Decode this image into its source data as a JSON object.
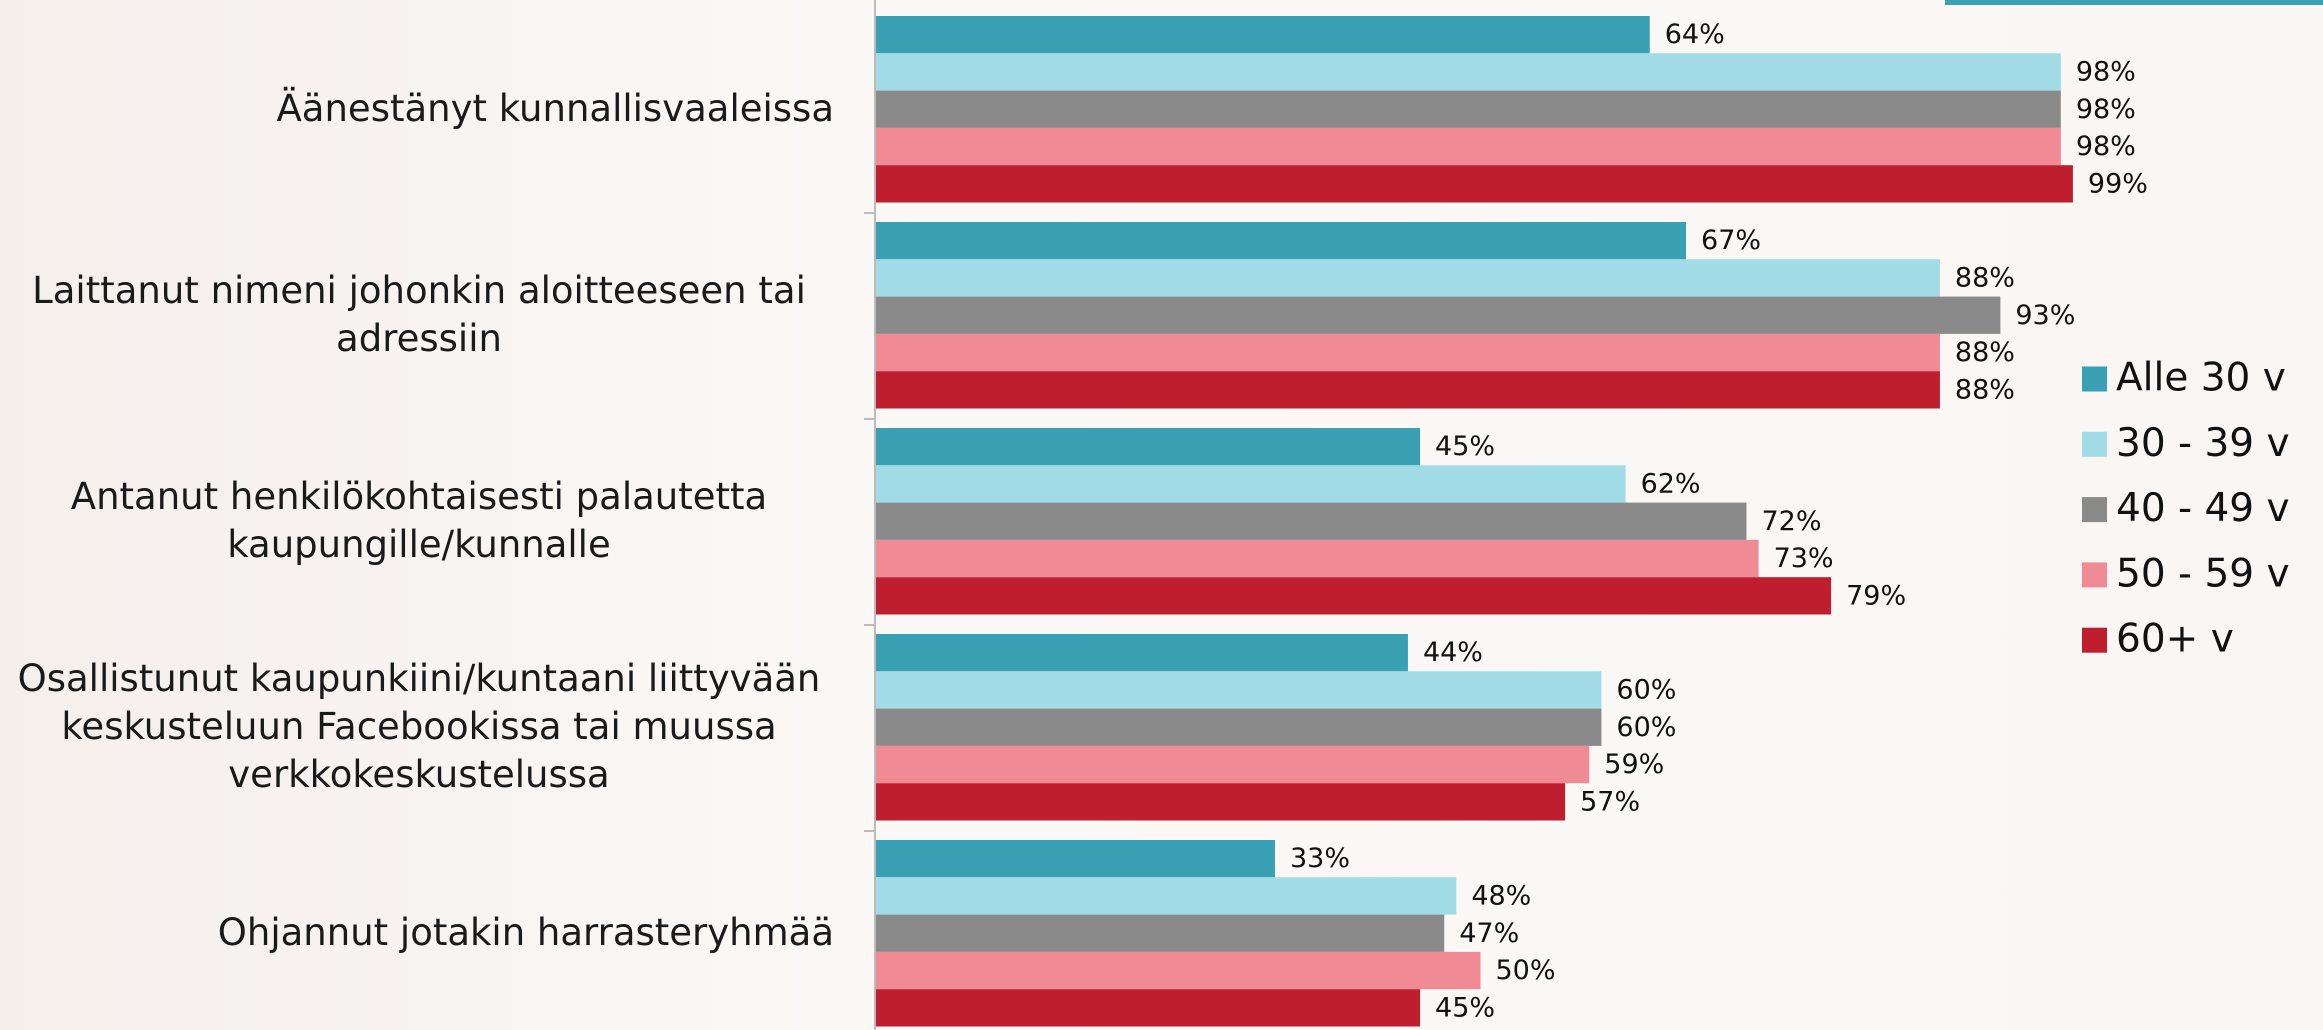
{
  "chart_data": {
    "type": "bar",
    "orientation": "horizontal",
    "categories": [
      "Äänestänyt kunnallisvaaleissa",
      "Laittanut nimeni johonkin aloitteeseen tai adressiin",
      "Antanut henkilökohtaisesti palautetta kaupungille/kunnalle",
      "Osallistunut kaupunkiini/kuntaani liittyvään keskusteluun Facebookissa tai muussa verkkokeskustelussa",
      "Ohjannut jotakin harrasteryhmää"
    ],
    "series": [
      {
        "name": "Alle 30 v",
        "color": "#3aa0b4",
        "values": [
          64,
          67,
          45,
          44,
          33
        ],
        "value_labels": [
          "64%",
          "67%",
          "45%",
          "44%",
          "33%"
        ]
      },
      {
        "name": "30 - 39 v",
        "color": "#a0dbe6",
        "values": [
          98,
          88,
          62,
          60,
          48
        ],
        "value_labels": [
          "98%",
          "88%",
          "62%",
          "60%",
          "48%"
        ]
      },
      {
        "name": "40 - 49 v",
        "color": "#8a8a8a",
        "values": [
          98,
          93,
          72,
          60,
          47
        ],
        "value_labels": [
          "98%",
          "93%",
          "72%",
          "60%",
          "47%"
        ]
      },
      {
        "name": "50 - 59 v",
        "color": "#f08a94",
        "values": [
          98,
          88,
          73,
          59,
          50
        ],
        "value_labels": [
          "98%",
          "88%",
          "73%",
          "59%",
          "50%"
        ]
      },
      {
        "name": "60+ v",
        "color": "#be1e2d",
        "values": [
          99,
          88,
          79,
          57,
          45
        ],
        "value_labels": [
          "99%",
          "88%",
          "79%",
          "57%",
          "45%"
        ]
      }
    ],
    "xlim": [
      0,
      100
    ],
    "legend": "right"
  }
}
